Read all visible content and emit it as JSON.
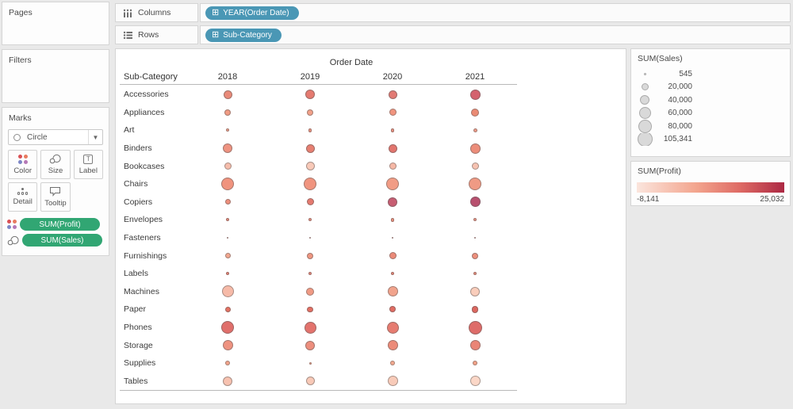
{
  "shelves": {
    "pages_label": "Pages",
    "filters_label": "Filters",
    "columns_label": "Columns",
    "rows_label": "Rows",
    "columns_pill": "YEAR(Order Date)",
    "rows_pill": "Sub-Category",
    "pill_plus_glyph": "⊞"
  },
  "marks": {
    "title": "Marks",
    "mark_type": "Circle",
    "dropdown_caret": "▼",
    "buttons": {
      "color": "Color",
      "size": "Size",
      "label": "Label",
      "detail": "Detail",
      "tooltip": "Tooltip"
    },
    "label_icon_glyph": "T",
    "pills": {
      "profit": "SUM(Profit)",
      "sales": "SUM(Sales)"
    },
    "pill_color": "#31a673"
  },
  "chart_data": {
    "type": "scatter",
    "subtype": "bubble-matrix",
    "title": "Order Date",
    "row_header": "Sub-Category",
    "columns": [
      "2018",
      "2019",
      "2020",
      "2021"
    ],
    "size_encoding": "SUM(Sales)",
    "color_encoding": "SUM(Profit)",
    "rows": [
      {
        "label": "Accessories",
        "sizes": [
          11,
          12,
          11,
          13
        ],
        "colors": [
          "#e98a79",
          "#e57a70",
          "#e27a74",
          "#d4626e"
        ]
      },
      {
        "label": "Appliances",
        "sizes": [
          8,
          8,
          9,
          10
        ],
        "colors": [
          "#f09b83",
          "#f2a189",
          "#f0947e",
          "#ea8a74"
        ]
      },
      {
        "label": "Art",
        "sizes": [
          4,
          4.5,
          4.5,
          5
        ],
        "colors": [
          "#ef9a86",
          "#ee917e",
          "#ed8f7e",
          "#ef9985"
        ]
      },
      {
        "label": "Binders",
        "sizes": [
          12,
          11,
          11,
          13
        ],
        "colors": [
          "#ef9381",
          "#e77f71",
          "#e2756e",
          "#ec8d7a"
        ]
      },
      {
        "label": "Bookcases",
        "sizes": [
          9,
          11,
          9,
          9
        ],
        "colors": [
          "#f5bcab",
          "#f8c9b8",
          "#f5b7a5",
          "#f6c2b1"
        ]
      },
      {
        "label": "Chairs",
        "sizes": [
          16,
          16,
          16,
          16
        ],
        "colors": [
          "#f0937e",
          "#f0947f",
          "#f19c85",
          "#ef9a84"
        ]
      },
      {
        "label": "Copiers",
        "sizes": [
          7,
          9,
          12,
          13
        ],
        "colors": [
          "#ee8f7c",
          "#e57a6f",
          "#c75d72",
          "#b8506e"
        ]
      },
      {
        "label": "Envelopes",
        "sizes": [
          4,
          4,
          4.3,
          4
        ],
        "colors": [
          "#eb8878",
          "#ed8d7c",
          "#ed8e7c",
          "#ee9180"
        ]
      },
      {
        "label": "Fasteners",
        "sizes": [
          2,
          2,
          2,
          2
        ],
        "colors": [
          "#c98f88",
          "#c98f88",
          "#c98f88",
          "#c98f88"
        ]
      },
      {
        "label": "Furnishings",
        "sizes": [
          7,
          8,
          9,
          8
        ],
        "colors": [
          "#f2a78f",
          "#ef9681",
          "#eb8a78",
          "#ed8f7c"
        ]
      },
      {
        "label": "Labels",
        "sizes": [
          4,
          4,
          4.3,
          4.3
        ],
        "colors": [
          "#ea8375",
          "#eb8678",
          "#eb8575",
          "#ec8b79"
        ]
      },
      {
        "label": "Machines",
        "sizes": [
          15,
          10,
          13,
          12
        ],
        "colors": [
          "#f6baa8",
          "#f09a84",
          "#f1a38c",
          "#f9cdbb"
        ]
      },
      {
        "label": "Paper",
        "sizes": [
          7,
          7.5,
          8,
          8.5
        ],
        "colors": [
          "#e57263",
          "#e46f63",
          "#e16c62",
          "#dd675f"
        ]
      },
      {
        "label": "Phones",
        "sizes": [
          16,
          15,
          15,
          17
        ],
        "colors": [
          "#e06f6b",
          "#e3736d",
          "#e67c71",
          "#de6c69"
        ]
      },
      {
        "label": "Storage",
        "sizes": [
          13,
          12,
          13,
          13
        ],
        "colors": [
          "#ee9280",
          "#ed8e7d",
          "#ec8b79",
          "#ea8576"
        ]
      },
      {
        "label": "Supplies",
        "sizes": [
          6,
          3,
          6,
          6
        ],
        "colors": [
          "#f1a38a",
          "#ef9d85",
          "#f2a88f",
          "#f1a086"
        ]
      },
      {
        "label": "Tables",
        "sizes": [
          12,
          11,
          13,
          13
        ],
        "colors": [
          "#f7c2b0",
          "#f8c9b7",
          "#f8cbb9",
          "#fbd7c7"
        ]
      }
    ]
  },
  "legends": {
    "sales": {
      "title": "SUM(Sales)",
      "entries": [
        {
          "value": "545",
          "d": 3
        },
        {
          "value": "20,000",
          "d": 9
        },
        {
          "value": "40,000",
          "d": 12
        },
        {
          "value": "60,000",
          "d": 15
        },
        {
          "value": "80,000",
          "d": 17
        },
        {
          "value": "105,341",
          "d": 19
        }
      ]
    },
    "profit": {
      "title": "SUM(Profit)",
      "min": "-8,141",
      "max": "25,032",
      "gradient_start": "#fbe5dd",
      "gradient_end": "#ac2843"
    }
  }
}
